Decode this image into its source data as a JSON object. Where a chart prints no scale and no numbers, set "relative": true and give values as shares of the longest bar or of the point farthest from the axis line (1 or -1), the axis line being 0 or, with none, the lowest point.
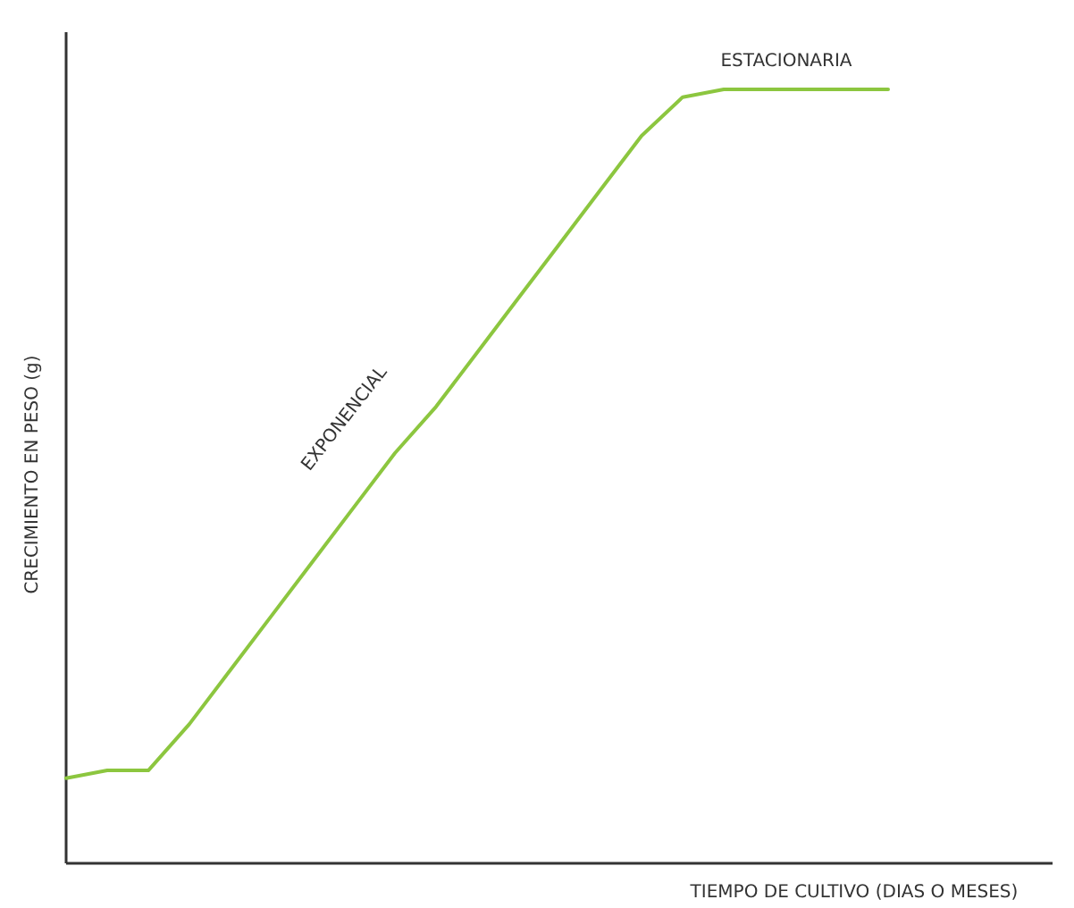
{
  "chart_data": {
    "type": "line",
    "relative": true,
    "xlabel": "TIEMPO DE CULTIVO (DIAS O MESES)",
    "ylabel": "CRECIMIENTO EN PESO (g)",
    "annotations": [
      "EXPONENCIAL",
      "ESTACIONARIA"
    ],
    "categories": [
      null,
      null,
      null,
      null,
      null,
      null,
      null,
      null,
      null,
      null,
      null,
      null,
      null,
      null,
      null,
      null,
      null,
      null,
      null,
      null,
      null,
      null,
      null,
      null,
      null
    ],
    "series": [
      {
        "color": "#8cc63f",
        "values": [
          0.11,
          0.12,
          0.12,
          0.18,
          0.25,
          0.32,
          0.39,
          0.46,
          0.53,
          0.59,
          0.66,
          0.73,
          0.8,
          0.87,
          0.94,
          0.99,
          1,
          1,
          1,
          1,
          1,
          null,
          null,
          null,
          null
        ]
      }
    ],
    "grid": false,
    "marker": "none",
    "line_style": "solid"
  }
}
